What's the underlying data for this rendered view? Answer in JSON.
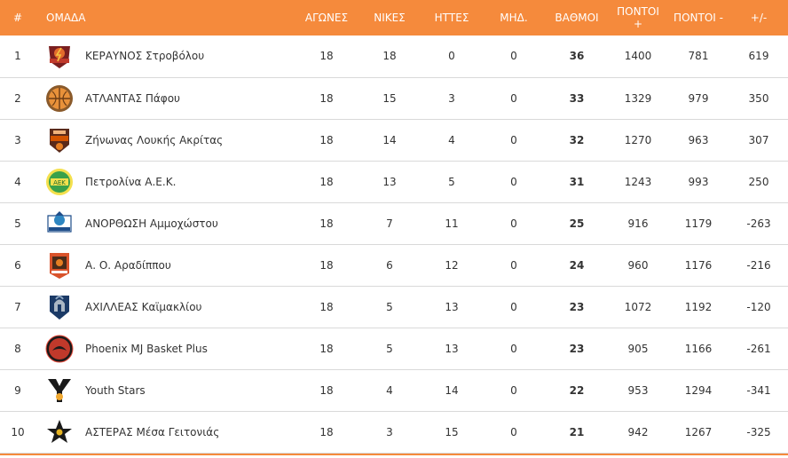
{
  "header": {
    "rank": "#",
    "team": "ΟΜΑΔΑ",
    "games": "ΑΓΩΝΕΣ",
    "wins": "ΝΙΚΕΣ",
    "losses": "ΗΤΤΕΣ",
    "md": "ΜΗΔ.",
    "points": "ΒΑΘΜΟΙ",
    "pf_line1": "ΠΟΝΤΟΙ",
    "pf_line2": "+",
    "pa": "ΠΟΝΤΟΙ -",
    "diff": "+/-"
  },
  "rows": [
    {
      "rank": "1",
      "team": "ΚΕΡΑΥΝΟΣ Στροβόλου",
      "logo": "keravnos-logo-icon",
      "games": "18",
      "wins": "18",
      "losses": "0",
      "md": "0",
      "points": "36",
      "pf": "1400",
      "pa": "781",
      "diff": "619"
    },
    {
      "rank": "2",
      "team": "ΑΤΛΑΝΤΑΣ Πάφου",
      "logo": "atlantas-logo-icon",
      "games": "18",
      "wins": "15",
      "losses": "3",
      "md": "0",
      "points": "33",
      "pf": "1329",
      "pa": "979",
      "diff": "350"
    },
    {
      "rank": "3",
      "team": "Ζήνωνας Λουκής Ακρίτας",
      "logo": "zinonas-logo-icon",
      "games": "18",
      "wins": "14",
      "losses": "4",
      "md": "0",
      "points": "32",
      "pf": "1270",
      "pa": "963",
      "diff": "307"
    },
    {
      "rank": "4",
      "team": "Πετρολίνα Α.Ε.Κ.",
      "logo": "aek-logo-icon",
      "games": "18",
      "wins": "13",
      "losses": "5",
      "md": "0",
      "points": "31",
      "pf": "1243",
      "pa": "993",
      "diff": "250"
    },
    {
      "rank": "5",
      "team": "ΑΝΟΡΘΩΣΗ Αμμοχώστου",
      "logo": "anorthosi-logo-icon",
      "games": "18",
      "wins": "7",
      "losses": "11",
      "md": "0",
      "points": "25",
      "pf": "916",
      "pa": "1179",
      "diff": "-263"
    },
    {
      "rank": "6",
      "team": "Α. Ο. Αραδίππου",
      "logo": "aradippou-logo-icon",
      "games": "18",
      "wins": "6",
      "losses": "12",
      "md": "0",
      "points": "24",
      "pf": "960",
      "pa": "1176",
      "diff": "-216"
    },
    {
      "rank": "7",
      "team": "ΑΧΙΛΛΕΑΣ Καϊμακλίου",
      "logo": "achilleas-logo-icon",
      "games": "18",
      "wins": "5",
      "losses": "13",
      "md": "0",
      "points": "23",
      "pf": "1072",
      "pa": "1192",
      "diff": "-120"
    },
    {
      "rank": "8",
      "team": "Phoenix MJ Basket Plus",
      "logo": "phoenix-logo-icon",
      "games": "18",
      "wins": "5",
      "losses": "13",
      "md": "0",
      "points": "23",
      "pf": "905",
      "pa": "1166",
      "diff": "-261"
    },
    {
      "rank": "9",
      "team": "Youth Stars",
      "logo": "youth-stars-logo-icon",
      "games": "18",
      "wins": "4",
      "losses": "14",
      "md": "0",
      "points": "22",
      "pf": "953",
      "pa": "1294",
      "diff": "-341"
    },
    {
      "rank": "10",
      "team": "ΑΣΤΕΡΑΣ Μέσα Γειτονιάς",
      "logo": "asteras-logo-icon",
      "games": "18",
      "wins": "3",
      "losses": "15",
      "md": "0",
      "points": "21",
      "pf": "942",
      "pa": "1267",
      "diff": "-325"
    }
  ],
  "colors": {
    "header_bg": "#f58a3c",
    "header_text": "#ffffff",
    "row_border": "#d9d9d9",
    "text": "#333333"
  }
}
